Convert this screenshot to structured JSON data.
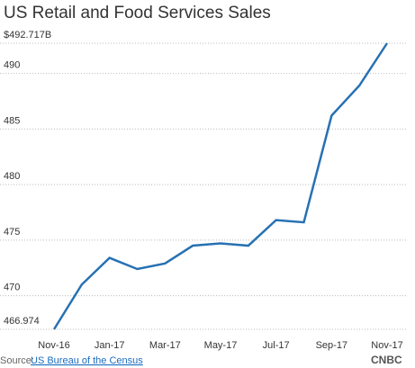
{
  "chart_data": {
    "type": "line",
    "title": "US Retail and Food Services Sales",
    "categories": [
      "Nov-16",
      null,
      "Jan-17",
      null,
      "Mar-17",
      null,
      "May-17",
      null,
      "Jul-17",
      null,
      "Sep-17",
      null,
      "Nov-17"
    ],
    "series": [
      {
        "name": "Sales",
        "color": "#2771b3",
        "values": [
          466.974,
          471.0,
          473.4,
          472.4,
          472.9,
          474.5,
          474.7,
          474.5,
          476.8,
          476.6,
          486.2,
          488.9,
          492.717
        ]
      }
    ],
    "ylim": [
      466.974,
      492.717
    ],
    "yticks": [
      466.974,
      470,
      475,
      480,
      485,
      490,
      {
        "value": 492.717,
        "label": "$492.717B"
      }
    ],
    "grid": true,
    "source_label": "Source:",
    "source": "US Bureau of the Census",
    "logo": "CNBC"
  }
}
